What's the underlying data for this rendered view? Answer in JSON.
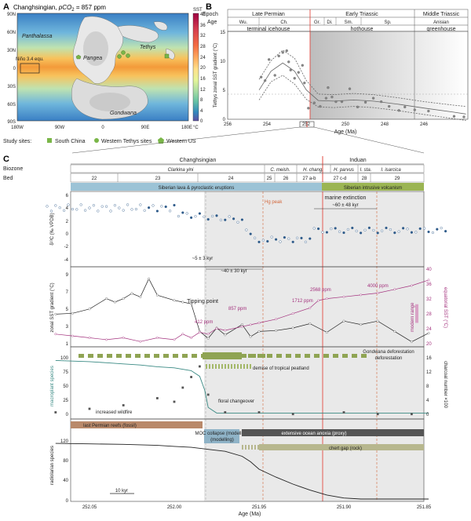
{
  "panelA": {
    "letter": "A",
    "title": "Changhsingian, ",
    "co2_label": "pCO",
    "co2_sub": "2",
    "co2_value": " = 857 ppm",
    "lat_ticks": [
      "90N",
      "60N",
      "30N",
      "0",
      "30S",
      "60S",
      "90S"
    ],
    "lon_ticks": [
      "180W",
      "90W",
      "0",
      "90E",
      "180E"
    ],
    "labels": {
      "panthalassa": "Panthalassa",
      "tethys": "Tethys",
      "pangea": "Pangea",
      "gondwana": "Gondwana",
      "nino": "Niño 3.4 equ."
    },
    "sst_title": "SST",
    "sst_ticks": [
      "40",
      "36",
      "32",
      "28",
      "24",
      "20",
      "16",
      "12",
      "8",
      "4",
      "0"
    ],
    "sst_unit": "°C",
    "legend_title": "Study sites:",
    "legend": [
      {
        "label": "South China",
        "color": "#7ab648",
        "shape": "square"
      },
      {
        "label": "Western Tethys sites",
        "color": "#7ab648",
        "shape": "circle"
      },
      {
        "label": "Western US",
        "color": "#7ab648",
        "shape": "pentagon"
      }
    ]
  },
  "panelB": {
    "letter": "B",
    "epoch_label": "Epoch",
    "age_label": "Age",
    "epochs": [
      "Late Permian",
      "Early Triassic",
      "Middle Triassic"
    ],
    "ages": [
      "Wu.",
      "Ch.",
      "Gr.",
      "Di.",
      "Sm.",
      "Sp.",
      "Anisian"
    ],
    "climate": [
      "terminal icehouse",
      "hothouse",
      "greenhouse"
    ],
    "ylabel": "Tethys zonal SST gradient (°C)",
    "xlabel": "Age (Ma)",
    "yticks": [
      "0",
      "5",
      "10",
      "15"
    ],
    "xticks": [
      "256",
      "254",
      "252",
      "250",
      "248",
      "246"
    ]
  },
  "chart_data": {
    "type": "scatter",
    "title": "",
    "xlabel": "Age (Ma)",
    "ylabel": "Tethys zonal SST gradient (°C)",
    "xlim": [
      256,
      243.8
    ],
    "ylim": [
      0,
      15
    ],
    "x": [
      254.3,
      254.1,
      253.9,
      253.6,
      253.4,
      253.2,
      253.0,
      252.9,
      252.8,
      252.6,
      252.4,
      252.2,
      252.1,
      251.9,
      251.6,
      251.3,
      251.0,
      250.9,
      250.7,
      250.5,
      250.2,
      249.8,
      249.4,
      249.0,
      248.6,
      248.2,
      247.8,
      247.3,
      247.0,
      246.5,
      245.8,
      244.5,
      244.0
    ],
    "y": [
      7.2,
      6.6,
      10.2,
      7.5,
      10.8,
      11.4,
      11.7,
      9.8,
      8.4,
      7.0,
      8.0,
      9.2,
      6.2,
      1.9,
      2.8,
      2.2,
      3.6,
      5.4,
      3.8,
      3.0,
      3.0,
      5.2,
      2.1,
      2.9,
      3.6,
      3.0,
      2.2,
      1.5,
      2.1,
      1.6,
      1.4,
      0.5,
      0.4
    ]
  },
  "panelC": {
    "letter": "C",
    "stages": [
      "Changhsingian",
      "Induan"
    ],
    "biozone_label": "Biozone",
    "biozones": [
      "Clarkina yini",
      "C. meish.",
      "H. chang.",
      "H. parvus",
      "I. sta.",
      "I. isarcica"
    ],
    "bed_label": "Bed",
    "beds": [
      "22",
      "23",
      "24",
      "25",
      "26",
      "27 a-b",
      "27 c-d",
      "28",
      "29"
    ],
    "volcanism": [
      "Siberian lava & pyroclastic eruptions",
      "Siberian intrusive volcanism"
    ],
    "marine_extinction": "marine extinction",
    "extinction_duration": "~60 ± 48 kyr",
    "hg_peak": "Hg peak",
    "d13c_label": "δ¹³C (‰ VPDB)",
    "d13c_ticks": [
      "6",
      "4",
      "2",
      "0",
      "-2",
      "-4"
    ],
    "dur1": "~5 ± 3 kyr",
    "dur2": "~40 ± 30 kyr",
    "sst_grad_label": "zonal SST gradient (°C)",
    "sst_grad_ticks": [
      "9",
      "7",
      "5",
      "3",
      "1"
    ],
    "equ_sst_label": "equatorial SST (°C)",
    "equ_sst_ticks": [
      "40",
      "36",
      "32",
      "28",
      "24",
      "20"
    ],
    "tipping_point": "Tipping point",
    "modern_range": "modern range",
    "ppm_labels": [
      "412 ppm",
      "857 ppm",
      "1712 ppm",
      "2568 ppm",
      "4000 ppm"
    ],
    "gondwana_deforestation": "Gondwana deforestation",
    "demise_peatland": "demise of tropical peatland",
    "increased_wildfire": "increased wildfire",
    "floral_changeover": "floral changeover",
    "macroplant_label": "macroplant species",
    "macroplant_ticks": [
      "100",
      "75",
      "50",
      "25",
      "0"
    ],
    "charcoal_label": "charcoal number ×100",
    "charcoal_ticks": [
      "16",
      "12",
      "8",
      "4",
      "0"
    ],
    "reefs": "last Permian reefs (fossil)",
    "moc": "MOC collapse (modelling)",
    "anoxia": "extensive ocean anoxia (proxy)",
    "chert_gap": "chert gap (rock)",
    "radiolarian_label": "radiolarian species",
    "radiolarian_ticks": [
      "120",
      "80",
      "40",
      "0"
    ],
    "scale_bar": "10 kyr",
    "xticks": [
      "252.05",
      "252.00",
      "251.95",
      "251.90",
      "251.85"
    ],
    "xlabel": "Age (Ma)"
  }
}
